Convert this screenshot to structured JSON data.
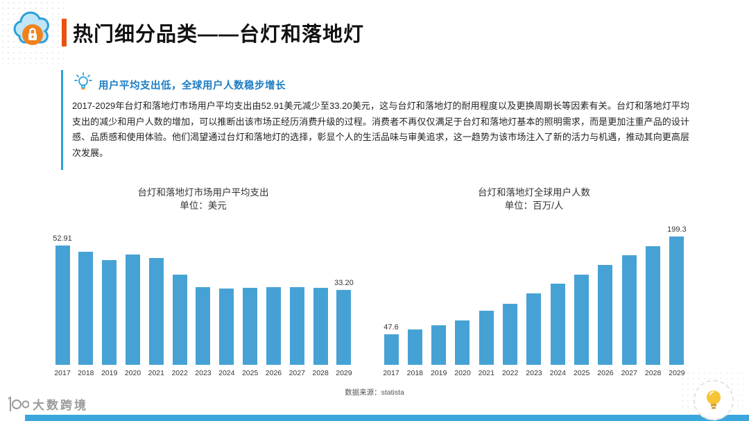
{
  "header": {
    "title": "热门细分品类——台灯和落地灯",
    "accent_color": "#E8520F",
    "icon": "cloud-lock-icon"
  },
  "insight": {
    "icon": "lightbulb-icon",
    "heading": "用户平均支出低，全球用户人数稳步增长",
    "heading_color": "#1D7DC4",
    "paragraph": "2017-2029年台灯和落地灯市场用户平均支出由52.91美元减少至33.20美元，这与台灯和落地灯的耐用程度以及更换周期长等因素有关。台灯和落地灯平均支出的减少和用户人数的增加，可以推断出该市场正经历消费升级的过程。消费者不再仅仅满足于台灯和落地灯基本的照明需求，而是更加注重产品的设计感、品质感和使用体验。他们渴望通过台灯和落地灯的选择，彰显个人的生活品味与审美追求，这一趋势为该市场注入了新的活力与机遇，推动其向更高层次发展。"
  },
  "chart_data": [
    {
      "type": "bar",
      "title": "台灯和落地灯市场用户平均支出",
      "subtitle": "单位：美元",
      "categories": [
        "2017",
        "2018",
        "2019",
        "2020",
        "2021",
        "2022",
        "2023",
        "2024",
        "2025",
        "2026",
        "2027",
        "2028",
        "2029"
      ],
      "values": [
        52.91,
        50.0,
        46.6,
        48.9,
        47.4,
        40.0,
        34.6,
        33.8,
        34.1,
        34.4,
        34.6,
        34.2,
        33.2
      ],
      "point_labels": [
        "52.91",
        null,
        null,
        null,
        null,
        null,
        null,
        null,
        null,
        null,
        null,
        null,
        "33.20"
      ],
      "bar_color": "#46A2D4",
      "xlabel": "",
      "ylabel": "",
      "ylim": [
        0,
        60
      ],
      "grid": false,
      "legend": false
    },
    {
      "type": "bar",
      "title": "台灯和落地灯全球用户人数",
      "subtitle": "单位：百万/人",
      "categories": [
        "2017",
        "2018",
        "2019",
        "2020",
        "2021",
        "2022",
        "2023",
        "2024",
        "2025",
        "2026",
        "2027",
        "2028",
        "2029"
      ],
      "values": [
        47.6,
        54.5,
        61.8,
        69.0,
        84.5,
        95.0,
        110.5,
        126.0,
        140.5,
        155.5,
        170.5,
        184.0,
        199.3
      ],
      "point_labels": [
        "47.6",
        null,
        null,
        null,
        null,
        null,
        null,
        null,
        null,
        null,
        null,
        null,
        "199.3"
      ],
      "bar_color": "#46A2D4",
      "xlabel": "",
      "ylabel": "",
      "ylim": [
        0,
        210
      ],
      "grid": false,
      "legend": false
    }
  ],
  "footer": {
    "source": "数据来源：statista",
    "watermark": "大数跨境",
    "strip_color": "#3BA6DC",
    "badge_icon": "lightbulb-badge-icon"
  }
}
